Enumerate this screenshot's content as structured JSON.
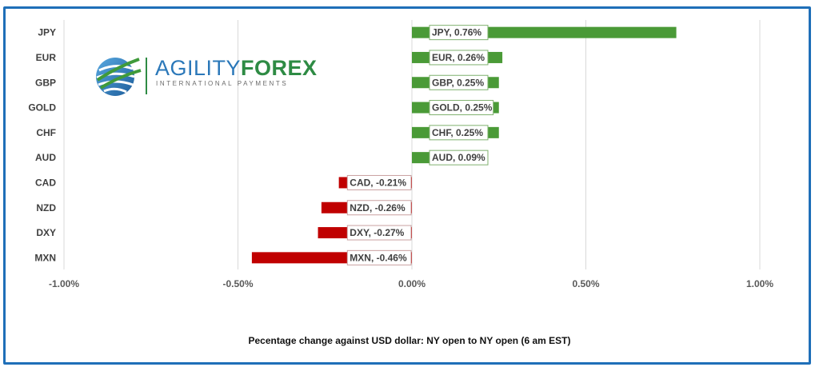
{
  "chart_data": {
    "type": "bar",
    "orientation": "horizontal",
    "categories": [
      "JPY",
      "EUR",
      "GBP",
      "GOLD",
      "CHF",
      "AUD",
      "CAD",
      "NZD",
      "DXY",
      "MXN"
    ],
    "values": [
      0.76,
      0.26,
      0.25,
      0.25,
      0.25,
      0.09,
      -0.21,
      -0.26,
      -0.27,
      -0.46
    ],
    "data_labels": [
      "JPY, 0.76%",
      "EUR, 0.26%",
      "GBP, 0.25%",
      "GOLD, 0.25%",
      "CHF, 0.25%",
      "AUD, 0.09%",
      "CAD, -0.21%",
      "NZD, -0.26%",
      "DXY, -0.27%",
      "MXN, -0.46%"
    ],
    "xlim": [
      -1.0,
      1.0
    ],
    "xticks": [
      -1.0,
      -0.5,
      0.0,
      0.5,
      1.0
    ],
    "xtick_labels": [
      "-1.00%",
      "-0.50%",
      "0.00%",
      "0.50%",
      "1.00%"
    ],
    "grid": true,
    "colors": {
      "positive": "#4a9a37",
      "negative": "#c00000",
      "grid": "#d9d9d9",
      "frame": "#1f6fb8"
    },
    "caption": "Pecentage change against USD dollar:  NY open to NY open  (6 am EST)"
  },
  "logo": {
    "word_plain": "AGILITY",
    "word_bold": "FOREX",
    "subtitle": "INTERNATIONAL PAYMENTS"
  }
}
